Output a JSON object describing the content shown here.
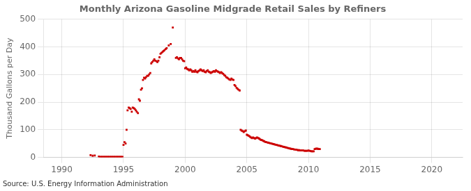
{
  "chart_data": {
    "type": "scatter",
    "title": "Monthly Arizona Gasoline Midgrade Retail Sales by Refiners",
    "ylabel": "Thousand Gallons per Day",
    "source": "Source: U.S. Energy Information Administration",
    "color": "#cc0000",
    "marker": "square",
    "grid": true,
    "xlim": [
      1988.5,
      2022.5
    ],
    "ylim": [
      0,
      500
    ],
    "xticks": [
      1990,
      1995,
      2000,
      2005,
      2010,
      2015,
      2020
    ],
    "yticks": [
      0,
      100,
      200,
      300,
      400,
      500
    ],
    "x": [
      1992.33,
      1992.5,
      1992.67,
      1993.0,
      1993.08,
      1993.17,
      1993.25,
      1993.33,
      1993.42,
      1993.5,
      1993.58,
      1993.67,
      1993.75,
      1993.83,
      1993.92,
      1994.0,
      1994.08,
      1994.17,
      1994.25,
      1994.33,
      1994.42,
      1994.5,
      1994.58,
      1994.67,
      1994.75,
      1994.83,
      1994.92,
      1995.0,
      1995.08,
      1995.17,
      1995.25,
      1995.33,
      1995.42,
      1995.5,
      1995.58,
      1995.67,
      1995.75,
      1995.83,
      1995.92,
      1996.0,
      1996.08,
      1996.17,
      1996.25,
      1996.33,
      1996.42,
      1996.5,
      1996.58,
      1996.67,
      1996.75,
      1996.83,
      1996.92,
      1997.0,
      1997.08,
      1997.17,
      1997.25,
      1997.33,
      1997.42,
      1997.5,
      1997.58,
      1997.67,
      1997.75,
      1997.83,
      1997.92,
      1998.0,
      1998.08,
      1998.17,
      1998.25,
      1998.33,
      1998.42,
      1998.5,
      1998.67,
      1998.83,
      1999.0,
      1999.25,
      1999.33,
      1999.42,
      1999.5,
      1999.58,
      1999.67,
      1999.75,
      1999.83,
      1999.92,
      2000.0,
      2000.08,
      2000.17,
      2000.25,
      2000.33,
      2000.42,
      2000.5,
      2000.58,
      2000.67,
      2000.75,
      2000.83,
      2000.92,
      2001.0,
      2001.08,
      2001.17,
      2001.25,
      2001.33,
      2001.42,
      2001.5,
      2001.58,
      2001.67,
      2001.75,
      2001.83,
      2001.92,
      2002.0,
      2002.08,
      2002.17,
      2002.25,
      2002.33,
      2002.42,
      2002.5,
      2002.58,
      2002.67,
      2002.75,
      2002.83,
      2002.92,
      2003.0,
      2003.08,
      2003.17,
      2003.25,
      2003.33,
      2003.42,
      2003.5,
      2003.58,
      2003.67,
      2003.75,
      2003.83,
      2003.92,
      2004.0,
      2004.08,
      2004.17,
      2004.25,
      2004.33,
      2004.42,
      2004.5,
      2004.58,
      2004.67,
      2004.75,
      2004.83,
      2004.92,
      2005.0,
      2005.08,
      2005.17,
      2005.25,
      2005.33,
      2005.42,
      2005.5,
      2005.58,
      2005.67,
      2005.75,
      2005.83,
      2005.92,
      2006.0,
      2006.08,
      2006.17,
      2006.25,
      2006.33,
      2006.42,
      2006.5,
      2006.58,
      2006.67,
      2006.75,
      2006.83,
      2006.92,
      2007.0,
      2007.08,
      2007.17,
      2007.25,
      2007.33,
      2007.42,
      2007.5,
      2007.58,
      2007.67,
      2007.75,
      2007.83,
      2007.92,
      2008.0,
      2008.08,
      2008.17,
      2008.25,
      2008.33,
      2008.42,
      2008.5,
      2008.58,
      2008.67,
      2008.75,
      2008.83,
      2008.92,
      2009.0,
      2009.08,
      2009.17,
      2009.25,
      2009.33,
      2009.42,
      2009.5,
      2009.58,
      2009.67,
      2009.75,
      2009.83,
      2009.92,
      2010.0,
      2010.08,
      2010.17,
      2010.25,
      2010.33,
      2010.42,
      2010.5,
      2010.58,
      2010.67,
      2010.75,
      2010.83,
      2010.92
    ],
    "values": [
      8,
      6,
      7,
      3,
      2,
      2,
      2,
      2,
      2,
      2,
      2,
      2,
      2,
      2,
      2,
      2,
      2,
      2,
      2,
      2,
      2,
      2,
      2,
      2,
      2,
      2,
      2,
      45,
      55,
      50,
      100,
      170,
      180,
      178,
      175,
      165,
      180,
      178,
      175,
      170,
      165,
      160,
      210,
      205,
      245,
      250,
      280,
      288,
      285,
      290,
      295,
      295,
      300,
      305,
      340,
      345,
      350,
      355,
      350,
      348,
      345,
      350,
      362,
      375,
      378,
      382,
      385,
      388,
      392,
      395,
      405,
      410,
      470,
      360,
      362,
      358,
      355,
      360,
      360,
      355,
      350,
      348,
      322,
      325,
      320,
      318,
      315,
      318,
      315,
      310,
      312,
      310,
      315,
      310,
      308,
      312,
      315,
      318,
      315,
      312,
      315,
      310,
      308,
      312,
      315,
      310,
      308,
      305,
      308,
      310,
      312,
      310,
      315,
      312,
      310,
      308,
      305,
      308,
      305,
      302,
      298,
      295,
      290,
      288,
      285,
      282,
      280,
      285,
      282,
      280,
      262,
      258,
      252,
      248,
      245,
      242,
      100,
      97,
      95,
      92,
      95,
      97,
      82,
      80,
      78,
      75,
      72,
      70,
      72,
      70,
      68,
      70,
      72,
      70,
      68,
      65,
      63,
      62,
      60,
      58,
      56,
      55,
      54,
      53,
      52,
      51,
      50,
      49,
      48,
      47,
      46,
      45,
      44,
      43,
      42,
      41,
      40,
      39,
      38,
      37,
      36,
      35,
      34,
      33,
      32,
      31,
      30,
      30,
      29,
      28,
      28,
      27,
      26,
      26,
      25,
      25,
      25,
      25,
      24,
      24,
      24,
      24,
      25,
      24,
      23,
      22,
      22,
      22,
      30,
      31,
      32,
      31,
      30,
      30
    ]
  }
}
